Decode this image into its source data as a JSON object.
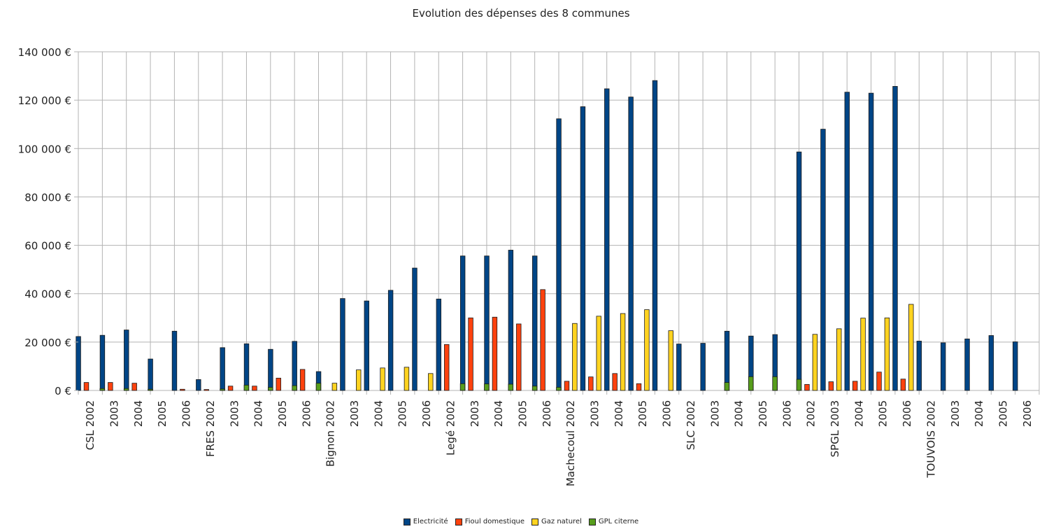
{
  "chart_data": {
    "type": "bar",
    "title": "Evolution des dépenses des 8 communes",
    "xlabel": "",
    "ylabel": "",
    "ylim": [
      0,
      140000
    ],
    "yticks": [
      "0 €",
      "20 000 €",
      "40 000 €",
      "60 000 €",
      "80 000 €",
      "100 000 €",
      "120 000 €",
      "140 000 €"
    ],
    "grid": true,
    "legend_position": "bottom",
    "categories": [
      "CSL 2002",
      "2003",
      "2004",
      "2005",
      "2006",
      "FRES 2002",
      "2003",
      "2004",
      "2005",
      "2006",
      "Bignon 2002",
      "2003",
      "2004",
      "2005",
      "2006",
      "Legé 2002",
      "2003",
      "2004",
      "2005",
      "2006",
      "Machecoul 2002",
      "2003",
      "2004",
      "2005",
      "2006",
      "SLC 2002",
      "2003",
      "2004",
      "2005",
      "2006",
      "2002",
      "SPGL 2003",
      "2004",
      "2005",
      "2006",
      "TOUVOIS 2002",
      "2003",
      "2004",
      "2005",
      "2006"
    ],
    "series": [
      {
        "name": "Electricité",
        "color": "#004586",
        "values": [
          22300,
          22800,
          25000,
          13000,
          24500,
          4500,
          17700,
          19300,
          17000,
          20300,
          7800,
          38000,
          37000,
          41400,
          50600,
          37800,
          55600,
          55600,
          58000,
          55600,
          112300,
          117300,
          124700,
          121300,
          128100,
          19200,
          19500,
          24500,
          22500,
          23100,
          98600,
          108000,
          123300,
          122900,
          125700,
          20400,
          19700,
          21300,
          22700,
          20100
        ]
      },
      {
        "name": "Fioul domestique",
        "color": "#ff420e",
        "values": [
          3300,
          3300,
          3000,
          0,
          500,
          400,
          1800,
          1800,
          5100,
          8700,
          0,
          0,
          0,
          0,
          0,
          19000,
          30000,
          30300,
          27500,
          41700,
          3800,
          5600,
          7000,
          2800,
          0,
          0,
          0,
          0,
          0,
          0,
          2500,
          3600,
          3800,
          7600,
          4700,
          0,
          0,
          0,
          0,
          0
        ]
      },
      {
        "name": "Gaz naturel",
        "color": "#ffd320",
        "values": [
          0,
          0,
          0,
          0,
          0,
          0,
          0,
          0,
          0,
          0,
          3000,
          8500,
          9300,
          9600,
          7000,
          0,
          0,
          0,
          0,
          0,
          27700,
          30700,
          31800,
          33400,
          24700,
          0,
          0,
          0,
          0,
          0,
          23200,
          25500,
          29900,
          30000,
          35600,
          0,
          0,
          0,
          0,
          0
        ]
      },
      {
        "name": "GPL citerne",
        "color": "#579d1c",
        "values": [
          800,
          800,
          500,
          0,
          0,
          600,
          2200,
          1300,
          2000,
          3000,
          0,
          0,
          0,
          0,
          0,
          2800,
          2700,
          2600,
          1800,
          1300,
          0,
          0,
          0,
          0,
          0,
          0,
          3300,
          5700,
          5700,
          4600,
          0,
          0,
          0,
          0,
          0,
          0,
          0,
          0,
          0,
          0
        ]
      }
    ]
  }
}
